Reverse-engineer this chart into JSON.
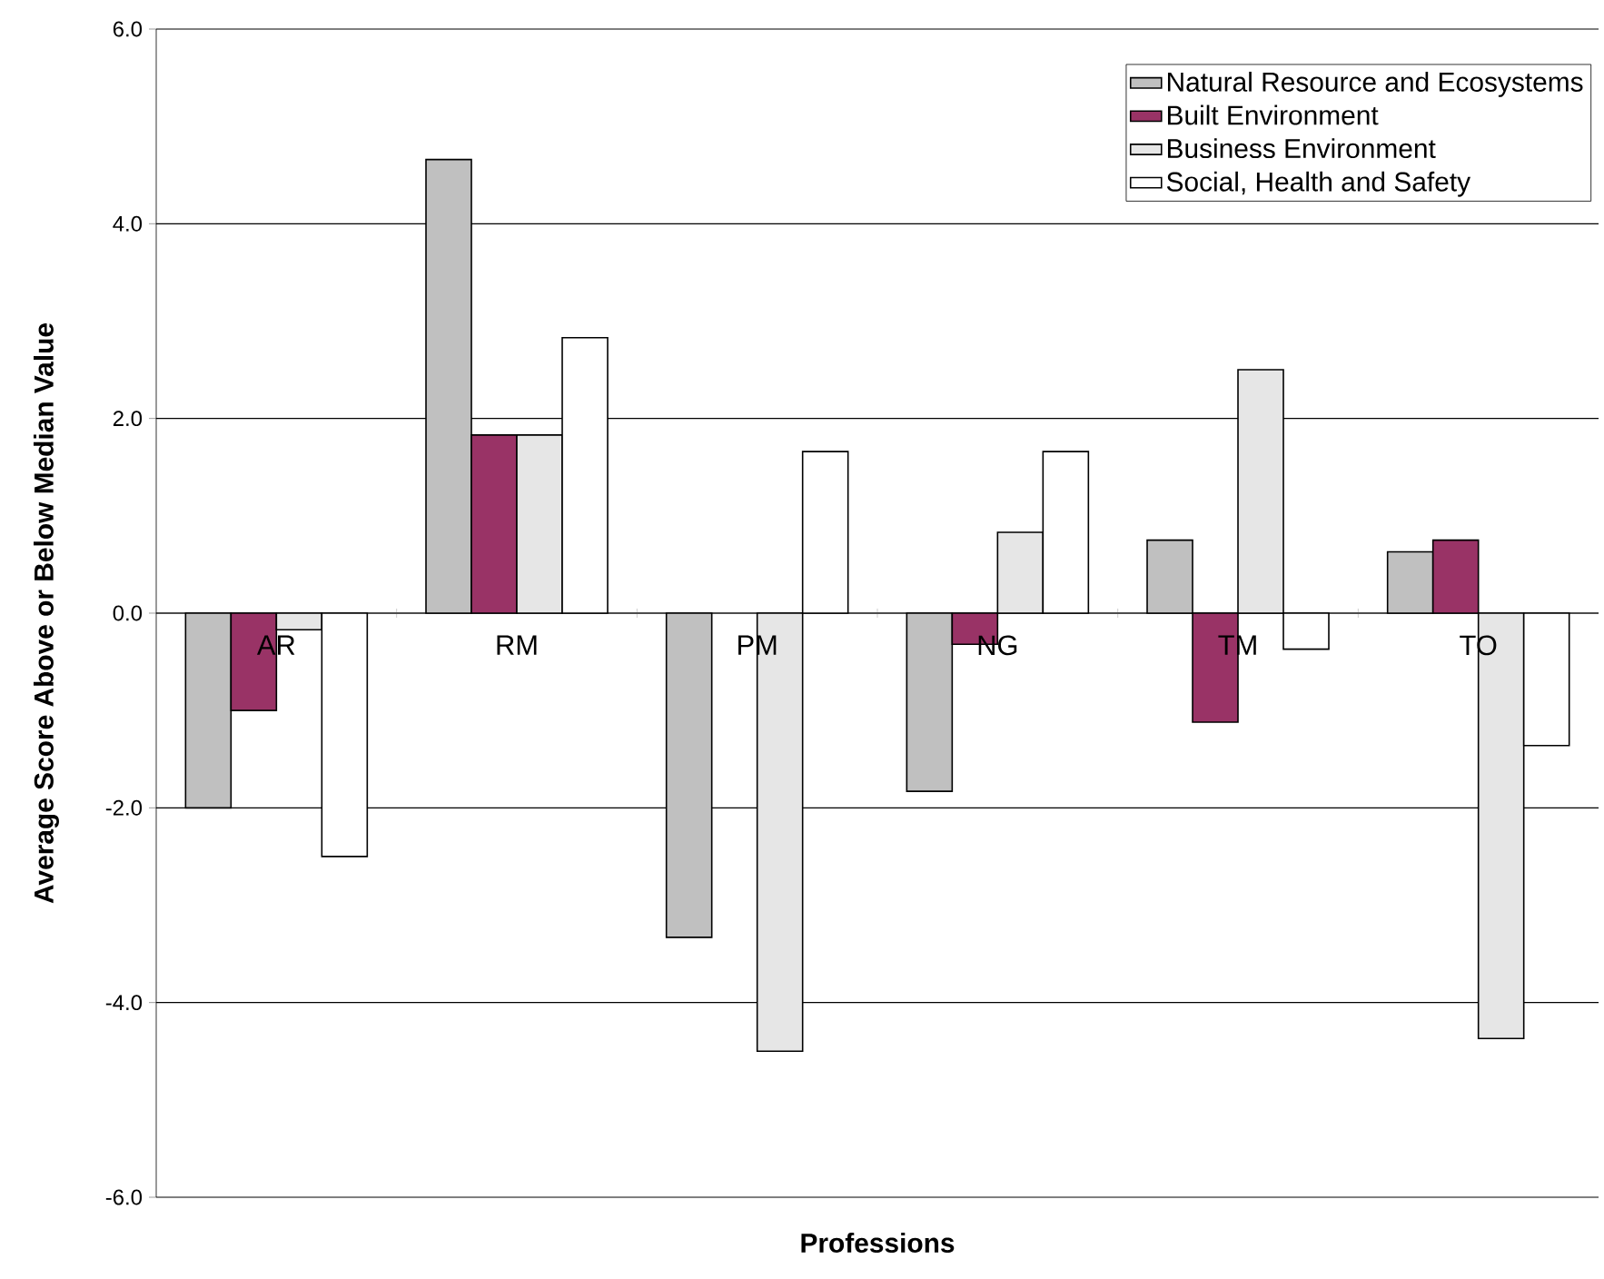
{
  "chart_data": {
    "type": "bar",
    "xlabel": "Professions",
    "ylabel": "Average Score Above or Below Median Value",
    "categories": [
      "AR",
      "RM",
      "PM",
      "NG",
      "TM",
      "TO"
    ],
    "series": [
      {
        "name": "Natural Resource and Ecosystems",
        "color": "#c0c0c0",
        "values": [
          -2.0,
          4.66,
          -3.33,
          -1.83,
          0.75,
          0.63
        ]
      },
      {
        "name": "Built Environment",
        "color": "#993366",
        "values": [
          -1.0,
          1.83,
          null,
          -0.32,
          -1.12,
          0.75
        ]
      },
      {
        "name": "Business Environment",
        "color": "#e6e6e6",
        "values": [
          -0.17,
          1.83,
          -4.5,
          0.83,
          2.5,
          -4.37
        ]
      },
      {
        "name": "Social, Health and Safety",
        "color": "#ffffff",
        "values": [
          -2.5,
          2.83,
          1.66,
          1.66,
          -0.37,
          -1.36
        ]
      }
    ],
    "ylim": [
      -6,
      6
    ],
    "yticks": [
      {
        "value": -6,
        "label": "-6.0"
      },
      {
        "value": -4,
        "label": "-4.0"
      },
      {
        "value": -2,
        "label": "-2.0"
      },
      {
        "value": 0,
        "label": "0.0"
      },
      {
        "value": 2,
        "label": "2.0"
      },
      {
        "value": 4,
        "label": "4.0"
      },
      {
        "value": 6,
        "label": "6.0"
      }
    ],
    "grid": "y",
    "legend": "top right"
  }
}
